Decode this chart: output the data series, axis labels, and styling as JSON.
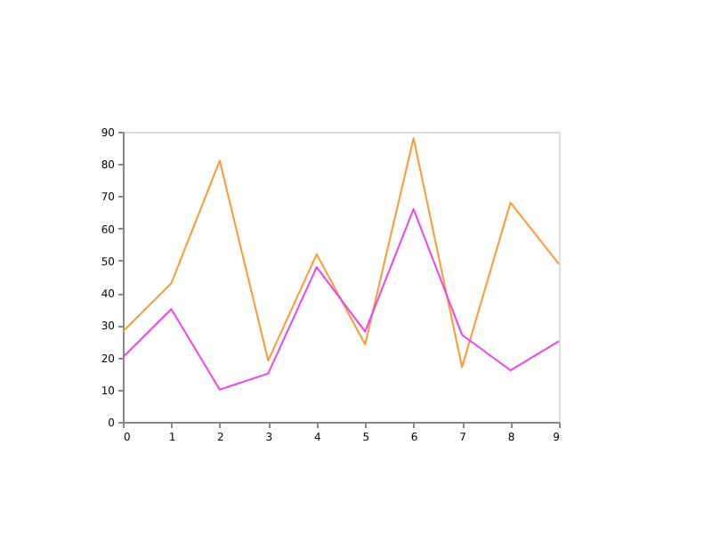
{
  "chart_data": {
    "type": "line",
    "x": [
      0,
      1,
      2,
      3,
      4,
      5,
      6,
      7,
      8,
      9
    ],
    "series": [
      {
        "color": "#ff9933",
        "values": [
          28,
          43,
          81,
          19,
          52,
          24,
          88,
          17,
          68,
          49
        ]
      },
      {
        "color": "#ee44ee",
        "values": [
          20,
          35,
          10,
          15,
          48,
          28,
          66,
          27,
          16,
          25
        ]
      }
    ],
    "xlim": [
      0,
      9
    ],
    "xticks": [
      0,
      1,
      2,
      3,
      4,
      5,
      6,
      7,
      8,
      9
    ],
    "ylim": [
      0,
      90
    ],
    "yticks": [
      0,
      10,
      20,
      30,
      40,
      50,
      60,
      70,
      80,
      90
    ],
    "grid": false,
    "legend": false
  }
}
